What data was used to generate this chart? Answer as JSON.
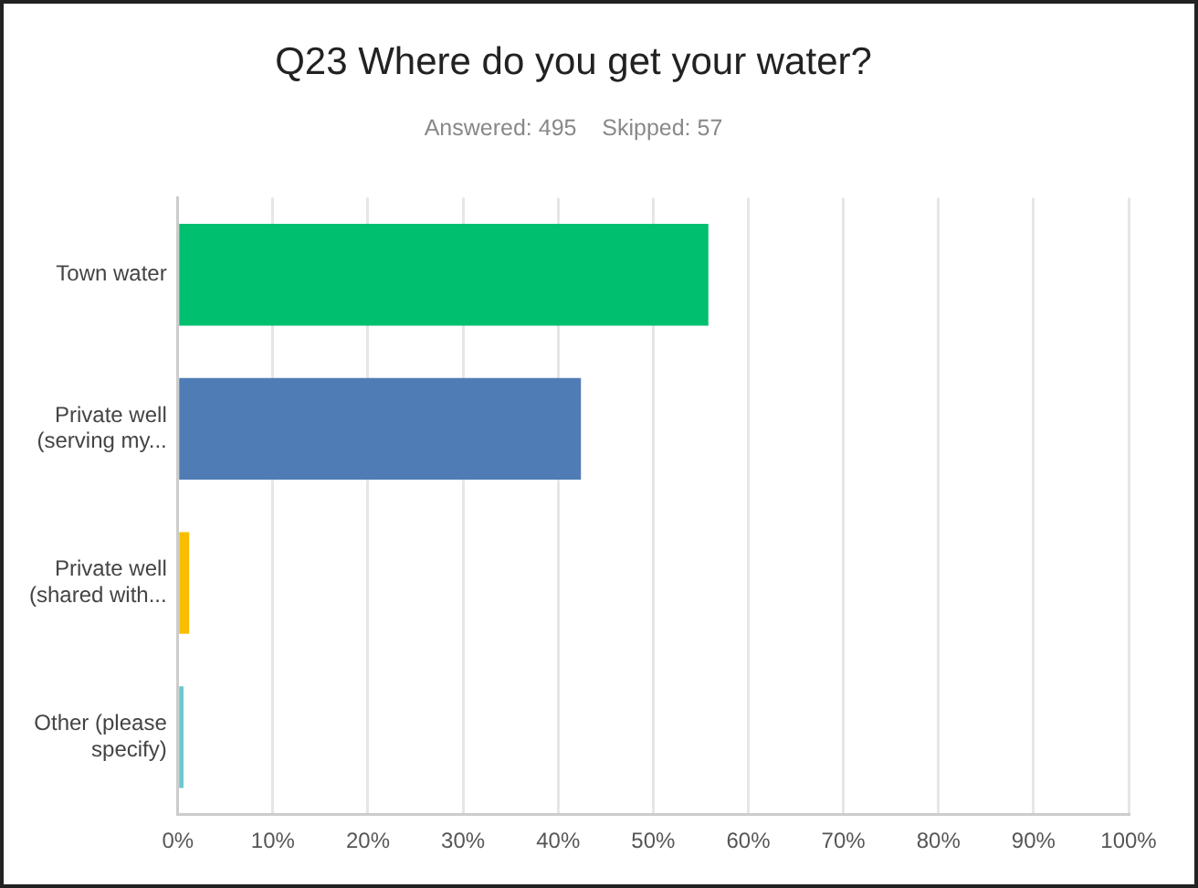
{
  "chart_data": {
    "type": "bar",
    "orientation": "horizontal",
    "title": "Q23 Where do you get your water?",
    "subtitle": "Answered: 495    Skipped: 57",
    "categories": [
      "Town water",
      "Private well (serving my...",
      "Private well (shared with...",
      "Other (please specify)"
    ],
    "values": [
      55.8,
      42.4,
      1.2,
      0.6
    ],
    "colors": [
      "#00bf6f",
      "#507cb6",
      "#f9be00",
      "#6bc8cd"
    ],
    "xlim": [
      0,
      100
    ],
    "xticks": [
      {
        "value": 0,
        "label": "0%"
      },
      {
        "value": 10,
        "label": "10%"
      },
      {
        "value": 20,
        "label": "20%"
      },
      {
        "value": 30,
        "label": "30%"
      },
      {
        "value": 40,
        "label": "40%"
      },
      {
        "value": 50,
        "label": "50%"
      },
      {
        "value": 60,
        "label": "60%"
      },
      {
        "value": 70,
        "label": "70%"
      },
      {
        "value": 80,
        "label": "80%"
      },
      {
        "value": 90,
        "label": "90%"
      },
      {
        "value": 100,
        "label": "100%"
      }
    ],
    "grid": "x",
    "legend": false
  }
}
